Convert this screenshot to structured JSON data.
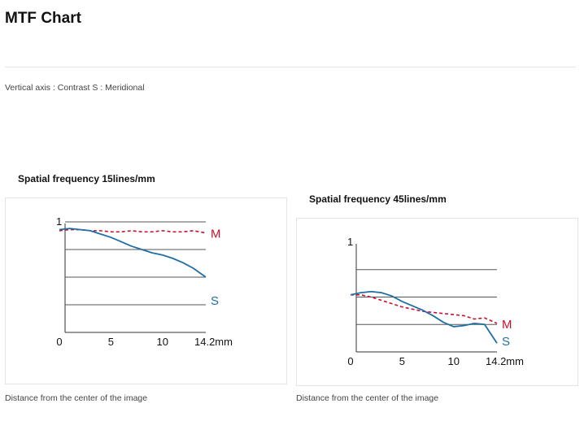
{
  "page": {
    "title": "MTF Chart",
    "caption": "Vertical axis : Contrast   S : Meridional"
  },
  "colors": {
    "m_line": "#c8102e",
    "s_line": "#1f6fa6",
    "grid": "#333333"
  },
  "chart_data": [
    {
      "type": "line",
      "title": "Spatial frequency 15lines/mm",
      "xlabel": "Distance from the center of the image",
      "ylabel": "",
      "xlim": [
        0,
        14.2
      ],
      "ylim": [
        0,
        1
      ],
      "x_ticks": [
        "0",
        "5",
        "10",
        "14.2mm"
      ],
      "y_ticks": [
        "1"
      ],
      "grid_y": [
        0.25,
        0.5,
        0.75,
        1
      ],
      "series": [
        {
          "name": "M",
          "style": "dashed",
          "color": "#c8102e",
          "x": [
            0,
            1,
            2,
            3,
            4,
            5,
            6,
            7,
            8,
            9,
            10,
            11,
            12,
            13,
            14.2
          ],
          "y": [
            0.92,
            0.93,
            0.93,
            0.92,
            0.92,
            0.91,
            0.91,
            0.92,
            0.91,
            0.91,
            0.92,
            0.91,
            0.91,
            0.92,
            0.9
          ]
        },
        {
          "name": "S",
          "style": "solid",
          "color": "#1f6fa6",
          "x": [
            0,
            1,
            2,
            3,
            4,
            5,
            6,
            7,
            8,
            9,
            10,
            11,
            12,
            13,
            14.2
          ],
          "y": [
            0.93,
            0.94,
            0.93,
            0.92,
            0.89,
            0.86,
            0.82,
            0.78,
            0.75,
            0.72,
            0.7,
            0.67,
            0.63,
            0.58,
            0.5
          ]
        }
      ]
    },
    {
      "type": "line",
      "title": "Spatial frequency 45lines/mm",
      "xlabel": "Distance from the center of the image",
      "ylabel": "",
      "xlim": [
        0,
        14.2
      ],
      "ylim": [
        0,
        1
      ],
      "x_ticks": [
        "0",
        "5",
        "10",
        "14.2mm"
      ],
      "y_ticks": [
        "1"
      ],
      "grid_y": [
        0.25,
        0.5,
        0.75
      ],
      "series": [
        {
          "name": "M",
          "style": "dashed",
          "color": "#c8102e",
          "x": [
            0,
            1,
            2,
            3,
            4,
            5,
            6,
            7,
            8,
            9,
            10,
            11,
            12,
            13,
            14.2
          ],
          "y": [
            0.52,
            0.52,
            0.5,
            0.47,
            0.44,
            0.41,
            0.39,
            0.37,
            0.36,
            0.35,
            0.34,
            0.33,
            0.3,
            0.31,
            0.26
          ]
        },
        {
          "name": "S",
          "style": "solid",
          "color": "#1f6fa6",
          "x": [
            0,
            1,
            2,
            3,
            4,
            5,
            6,
            7,
            8,
            9,
            10,
            11,
            12,
            13,
            14.2
          ],
          "y": [
            0.52,
            0.54,
            0.55,
            0.54,
            0.51,
            0.46,
            0.42,
            0.38,
            0.33,
            0.27,
            0.23,
            0.24,
            0.26,
            0.25,
            0.08
          ]
        }
      ]
    }
  ]
}
